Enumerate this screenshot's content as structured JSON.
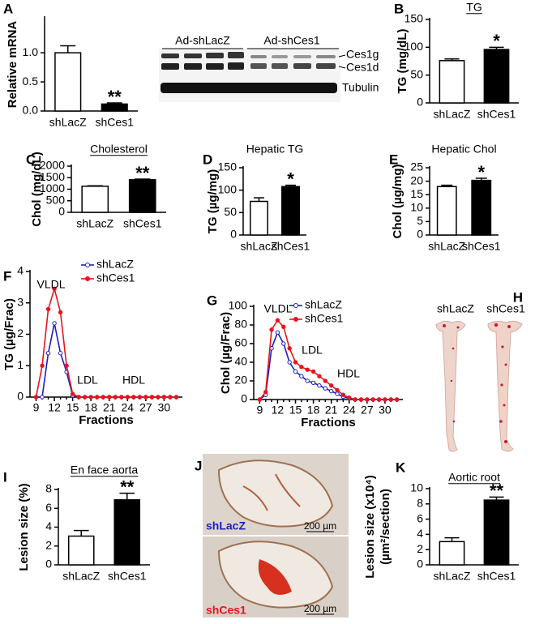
{
  "chart_data": [
    {
      "type": "bar",
      "panel": "A",
      "ylabel": "Relative mRNA",
      "categories": [
        "shLacZ",
        "shCes1"
      ],
      "values": [
        1.0,
        0.12
      ],
      "errors": [
        0.12,
        0.02
      ],
      "colors": [
        "#ffffff",
        "#000000"
      ],
      "significance": [
        null,
        "**"
      ],
      "ylim": [
        0,
        1.6
      ],
      "yticks": [
        {
          "value": 0,
          "label": "0.0"
        },
        {
          "value": 0.5,
          "label": "0.5"
        },
        {
          "value": 1,
          "label": "1.0"
        }
      ]
    },
    {
      "type": "bar",
      "panel": "B",
      "title": "TG",
      "ylabel": "TG (mg/dL)",
      "categories": [
        "shLacZ",
        "shCes1"
      ],
      "values": [
        76,
        96
      ],
      "errors": [
        3,
        4
      ],
      "colors": [
        "#ffffff",
        "#000000"
      ],
      "significance": [
        null,
        "*"
      ],
      "ylim": [
        0,
        150
      ],
      "yticks": [
        0,
        50,
        100,
        150
      ]
    },
    {
      "type": "bar",
      "panel": "C",
      "title": "Cholesterol",
      "ylabel": "Chol (mg/dL)",
      "categories": [
        "shLacZ",
        "shCes1"
      ],
      "values": [
        1130,
        1410
      ],
      "errors": [
        20,
        30
      ],
      "colors": [
        "#ffffff",
        "#000000"
      ],
      "significance": [
        null,
        "**"
      ],
      "ylim": [
        0,
        2000
      ],
      "yticks": [
        0,
        500,
        1000,
        1500,
        2000
      ]
    },
    {
      "type": "bar",
      "panel": "D",
      "title": "Hepatic TG",
      "ylabel": "TG (µg/mg)",
      "categories": [
        "shLacZ",
        "shCes1"
      ],
      "values": [
        75,
        108
      ],
      "errors": [
        8,
        3
      ],
      "colors": [
        "#ffffff",
        "#000000"
      ],
      "significance": [
        null,
        "*"
      ],
      "ylim": [
        0,
        150
      ],
      "yticks": [
        0,
        50,
        100,
        150
      ]
    },
    {
      "type": "bar",
      "panel": "E",
      "title": "Hepatic Chol",
      "ylabel": "Chol (µg/mg)",
      "categories": [
        "shLacZ",
        "shCes1"
      ],
      "values": [
        18,
        20.3
      ],
      "errors": [
        0.5,
        0.8
      ],
      "colors": [
        "#ffffff",
        "#000000"
      ],
      "significance": [
        null,
        "*"
      ],
      "ylim": [
        0,
        25
      ],
      "yticks": [
        0,
        5,
        10,
        15,
        20,
        25
      ]
    },
    {
      "type": "line",
      "panel": "F",
      "ylabel": "TG (µg/Frac)",
      "xlabel": "Fractions",
      "annotations": [
        "VLDL",
        "LDL",
        "HDL"
      ],
      "legend": "upper right",
      "x": [
        9,
        10,
        11,
        12,
        13,
        14,
        15,
        16,
        17,
        18,
        19,
        20,
        21,
        22,
        23,
        24,
        25,
        26,
        27,
        28,
        29,
        30,
        31,
        32
      ],
      "series": [
        {
          "name": "shLacZ",
          "color": "#1f1fbf",
          "values": [
            0,
            0,
            1.4,
            2.35,
            1.4,
            0.8,
            0.05,
            0,
            0,
            0,
            0,
            0,
            0,
            0,
            0,
            0,
            0,
            0,
            0,
            0,
            0,
            0,
            0,
            0
          ]
        },
        {
          "name": "shCes1",
          "color": "#e8141c",
          "values": [
            0,
            1.0,
            2.8,
            3.45,
            2.7,
            1.0,
            0.1,
            0,
            0,
            0,
            0,
            0,
            0,
            0,
            0,
            0,
            0,
            0,
            0,
            0,
            0,
            0,
            0,
            0
          ]
        }
      ],
      "xlim": [
        8,
        33
      ],
      "xticks": [
        9,
        12,
        15,
        18,
        21,
        24,
        27,
        30
      ],
      "ylim": [
        0,
        4
      ],
      "yticks": [
        0,
        1,
        2,
        3,
        4
      ]
    },
    {
      "type": "line",
      "panel": "G",
      "ylabel": "Chol (µg/Frac)",
      "xlabel": "Fractions",
      "annotations": [
        "VLDL",
        "LDL",
        "HDL"
      ],
      "legend": "upper right",
      "x": [
        9,
        10,
        11,
        12,
        13,
        14,
        15,
        16,
        17,
        18,
        19,
        20,
        21,
        22,
        23,
        24,
        25,
        26,
        27,
        28,
        29,
        30,
        31,
        32
      ],
      "series": [
        {
          "name": "shLacZ",
          "color": "#1f1fbf",
          "values": [
            0,
            5,
            55,
            72,
            60,
            40,
            30,
            25,
            20,
            18,
            15,
            12,
            9,
            6,
            3,
            1,
            0,
            0,
            0,
            0,
            0,
            0,
            0,
            0
          ]
        },
        {
          "name": "shCes1",
          "color": "#e8141c",
          "values": [
            0,
            8,
            75,
            85,
            78,
            55,
            40,
            35,
            32,
            30,
            25,
            20,
            15,
            10,
            5,
            2,
            0,
            0,
            0,
            0,
            0,
            0,
            0,
            0
          ]
        }
      ],
      "xlim": [
        8,
        33
      ],
      "xticks": [
        9,
        12,
        15,
        18,
        21,
        24,
        27,
        30
      ],
      "ylim": [
        0,
        100
      ],
      "yticks": [
        0,
        20,
        40,
        60,
        80,
        100
      ]
    },
    {
      "type": "bar",
      "panel": "I",
      "title": "En face aorta",
      "ylabel": "Lesion size (%)",
      "categories": [
        "shLacZ",
        "shCes1"
      ],
      "values": [
        3.05,
        6.9
      ],
      "errors": [
        0.6,
        0.7
      ],
      "colors": [
        "#ffffff",
        "#000000"
      ],
      "significance": [
        null,
        "**"
      ],
      "ylim": [
        0,
        8
      ],
      "yticks": [
        0,
        2,
        4,
        6,
        8
      ]
    },
    {
      "type": "bar",
      "panel": "K",
      "title": "Aortic root",
      "ylabel": [
        "Lesion size (x10⁴)",
        "(µm²/section)"
      ],
      "categories": [
        "shLacZ",
        "shCes1"
      ],
      "values": [
        3.05,
        8.5
      ],
      "errors": [
        0.5,
        0.4
      ],
      "colors": [
        "#ffffff",
        "#000000"
      ],
      "significance": [
        null,
        "**"
      ],
      "ylim": [
        0,
        10
      ],
      "yticks": [
        0,
        2,
        4,
        6,
        8,
        10
      ]
    }
  ],
  "figure": {
    "blot": {
      "groups": [
        "Ad-shLacZ",
        "Ad-shCes1"
      ],
      "bands": [
        "Ces1g",
        "Ces1d",
        "Tubulin"
      ]
    },
    "aorta_photo": {
      "panel": "H",
      "labels": [
        "shLacZ",
        "shCes1"
      ]
    },
    "section_photo": {
      "panel": "J",
      "labels": [
        "shLacZ",
        "shCes1"
      ],
      "scale_bar": "200 µm"
    }
  }
}
